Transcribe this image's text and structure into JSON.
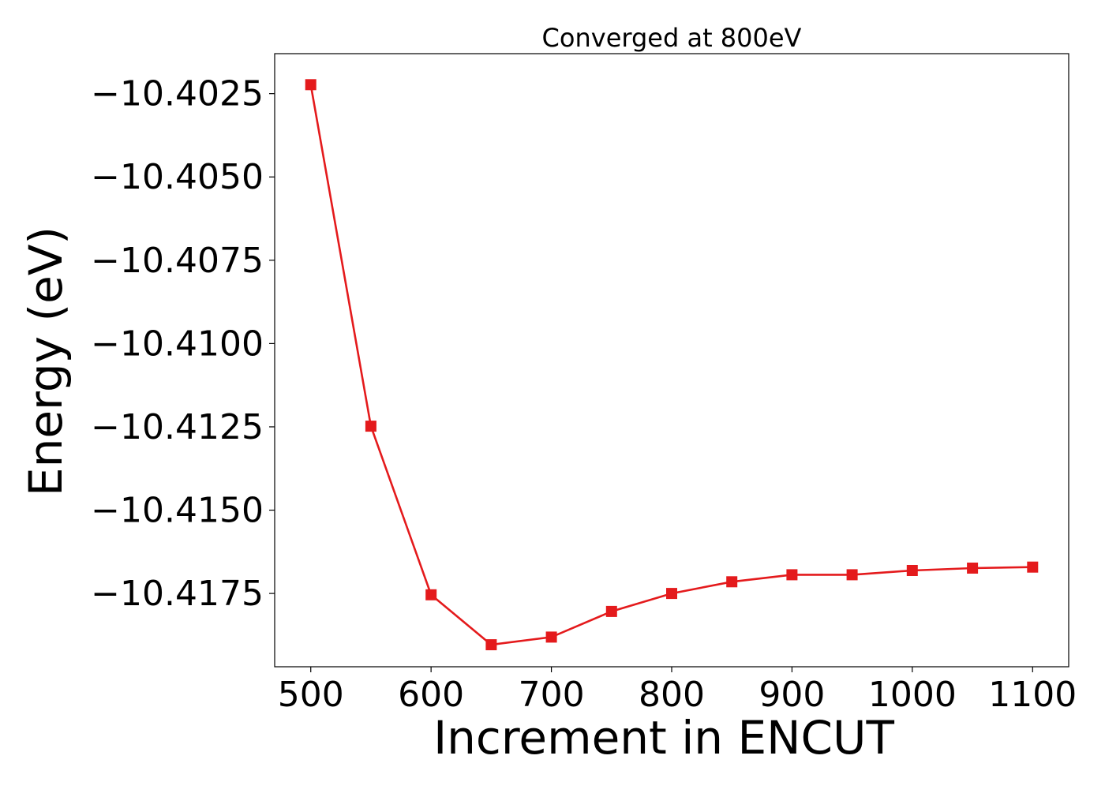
{
  "chart_data": {
    "type": "line",
    "title": "Converged at 800eV",
    "xlabel": "Increment in ENCUT",
    "ylabel": "Energy (eV)",
    "xlim": [
      470,
      1130
    ],
    "ylim": [
      -10.4197,
      -10.4013
    ],
    "xticks": [
      500,
      600,
      700,
      800,
      900,
      1000,
      1100
    ],
    "yticks": [
      -10.4025,
      -10.405,
      -10.4075,
      -10.41,
      -10.4125,
      -10.415,
      -10.4175
    ],
    "ytick_labels": [
      "−10.4025",
      "−10.4050",
      "−10.4075",
      "−10.4100",
      "−10.4125",
      "−10.4150",
      "−10.4175"
    ],
    "grid": false,
    "series": [
      {
        "color": "#e41a1c",
        "marker": "square",
        "x": [
          500,
          550,
          600,
          650,
          700,
          750,
          800,
          850,
          900,
          950,
          1000,
          1050,
          1100
        ],
        "y": [
          -10.40223,
          -10.41248,
          -10.41754,
          -10.41904,
          -10.41881,
          -10.41804,
          -10.4175,
          -10.41715,
          -10.41694,
          -10.41694,
          -10.41681,
          -10.41674,
          -10.41671
        ]
      }
    ]
  }
}
